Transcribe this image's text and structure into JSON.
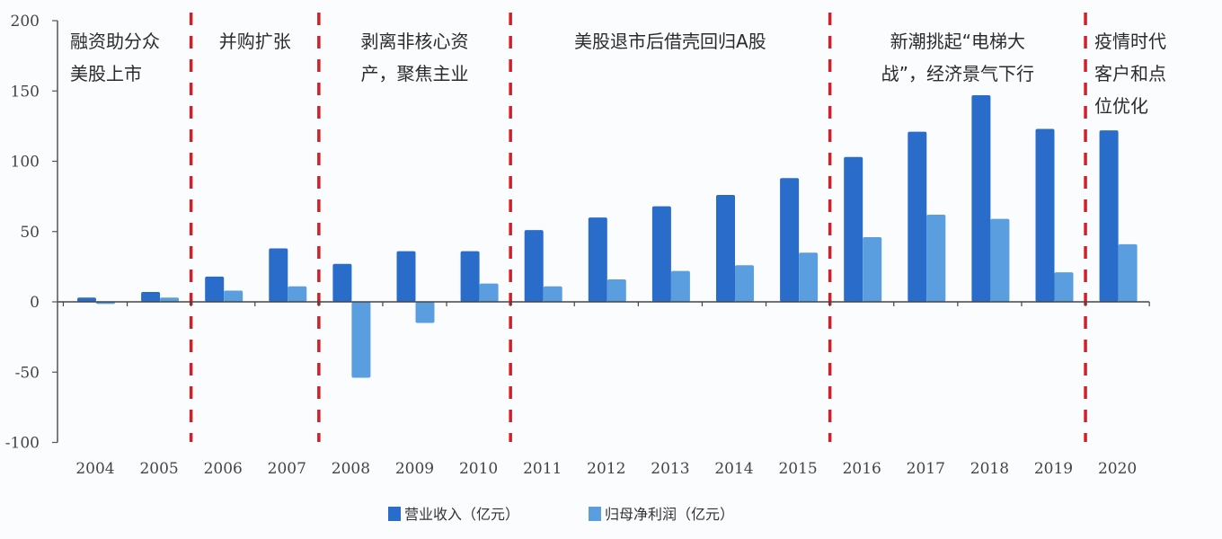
{
  "chart_data": {
    "type": "bar",
    "title": "",
    "xlabel": "",
    "ylabel": "",
    "ylim": [
      -100,
      200
    ],
    "yticks": [
      "200",
      "150",
      "100",
      "50",
      "0",
      "-50",
      "-100"
    ],
    "ytick_values": [
      200,
      150,
      100,
      50,
      0,
      -50,
      -100
    ],
    "categories": [
      "2004",
      "2005",
      "2006",
      "2007",
      "2008",
      "2009",
      "2010",
      "2011",
      "2012",
      "2013",
      "2014",
      "2015",
      "2016",
      "2017",
      "2018",
      "2019",
      "2020"
    ],
    "series": [
      {
        "name": "营业收入（亿元）",
        "color": "#2a6cc9",
        "values": [
          3,
          7,
          18,
          38,
          27,
          36,
          36,
          51,
          60,
          68,
          76,
          88,
          103,
          121,
          147,
          123,
          122
        ]
      },
      {
        "name": "归母净利润（亿元）",
        "color": "#5a9ee0",
        "values": [
          -1.5,
          3,
          8,
          11,
          -54,
          -15,
          13,
          11,
          16,
          22,
          26,
          35,
          46,
          62,
          59,
          21,
          41
        ]
      }
    ],
    "legend": "bottom",
    "grid": false,
    "divider_color": "#d0202a",
    "dividers_after": [
      "2005",
      "2007",
      "2010",
      "2015",
      "2019"
    ],
    "eras": [
      {
        "lines": [
          "融资助分众",
          "美股上市"
        ]
      },
      {
        "lines": [
          "并购扩张"
        ]
      },
      {
        "lines": [
          "剥离非核心资",
          "产，聚焦主业"
        ]
      },
      {
        "lines": [
          "美股退市后借壳回归A股"
        ]
      },
      {
        "lines": [
          "新潮挑起“电梯大",
          "战”，经济景气下行"
        ]
      },
      {
        "lines": [
          "疫情时代",
          "客户和点",
          "位优化"
        ]
      }
    ]
  }
}
